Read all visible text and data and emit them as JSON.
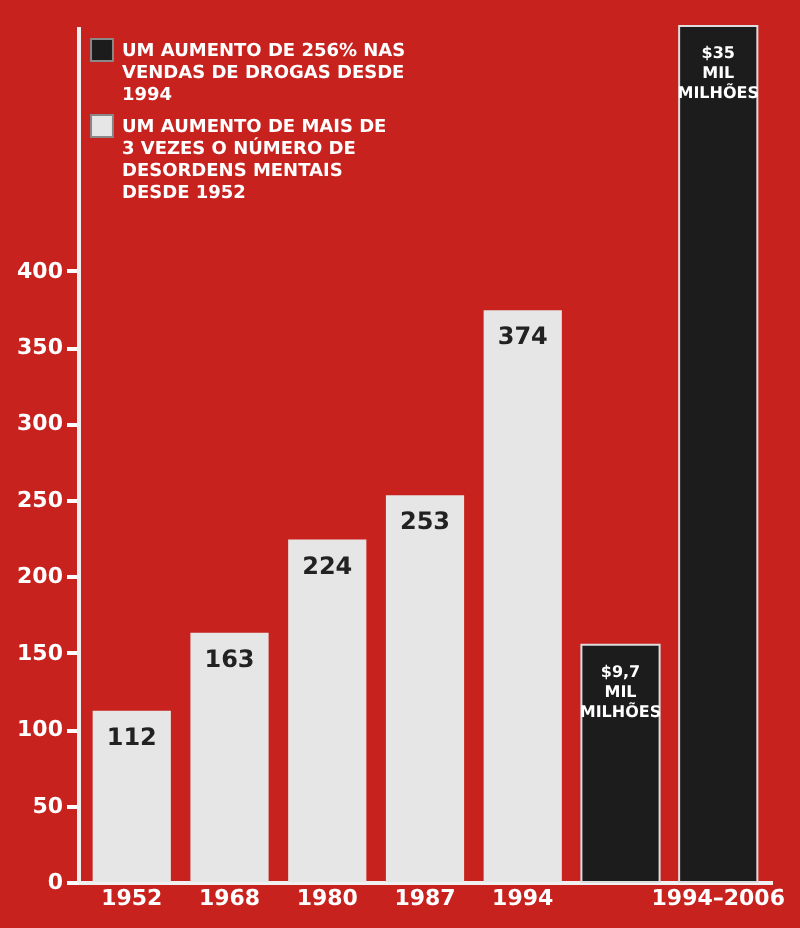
{
  "chart_data": {
    "type": "bar",
    "categories": [
      "1952",
      "1968",
      "1980",
      "1987",
      "1994",
      null,
      "1994–2006"
    ],
    "series": [
      {
        "name": "UM AUMENTO DE 256% NAS VENDAS DE DROGAS DESDE 1994",
        "color": "#1c1c1c",
        "axis": "y2",
        "values": [
          null,
          null,
          null,
          null,
          null,
          9.7,
          35
        ],
        "value_labels": [
          null,
          null,
          null,
          null,
          null,
          "$9,7 MIL MILHÕES",
          "$35 MIL MILHÕES"
        ]
      },
      {
        "name": "UM AUMENTO DE MAIS DE 3 VEZES O NÚMERO DE DESORDENS MENTAIS DESDE 1952",
        "color": "#e6e6e6",
        "values": [
          112,
          163,
          224,
          253,
          374,
          null,
          null
        ],
        "value_labels": [
          "112",
          "163",
          "224",
          "253",
          "374",
          null,
          null
        ]
      }
    ],
    "ylim": [
      0,
      560
    ],
    "yticks": [
      0,
      50,
      100,
      150,
      200,
      250,
      300,
      350,
      400
    ],
    "legend": "top left"
  }
}
